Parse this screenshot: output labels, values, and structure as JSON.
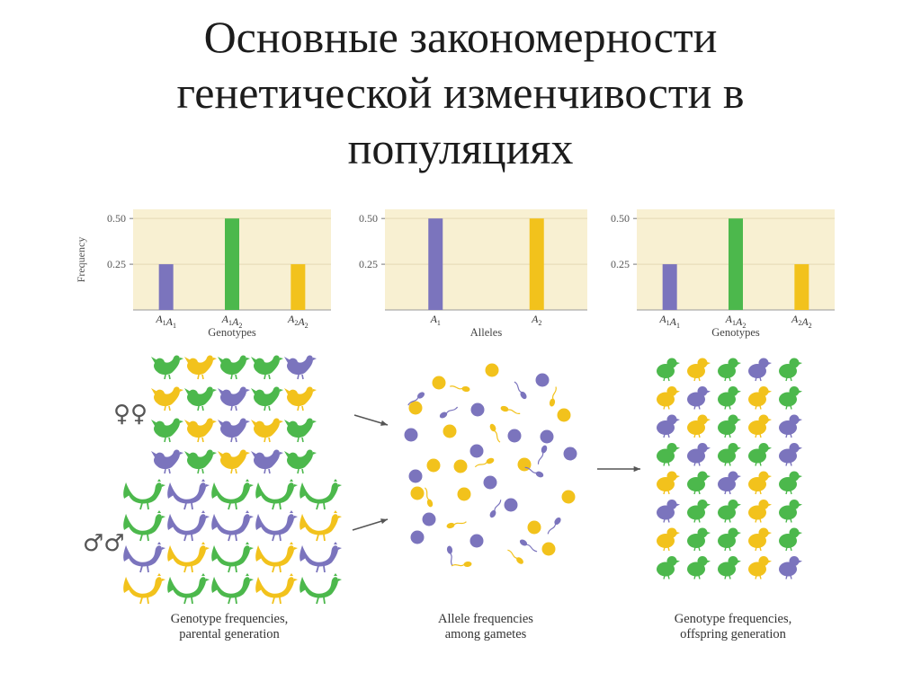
{
  "slide": {
    "title_lines": [
      "Основные закономерности",
      "генетической изменчивости в",
      "популяциях"
    ]
  },
  "colors": {
    "purple": "#7b74bd",
    "green": "#4cb84c",
    "yellow": "#f2c21c",
    "panel_bg": "#f8f0d2"
  },
  "chart_data": [
    {
      "type": "bar",
      "categories": [
        "A1A1",
        "A1A2",
        "A2A2"
      ],
      "values": [
        0.25,
        0.5,
        0.25
      ],
      "bar_colors": [
        "#7b74bd",
        "#4cb84c",
        "#f2c21c"
      ],
      "xlabel": "Genotypes",
      "ylabel": "Frequency",
      "yticks": [
        "0.25",
        "0.50"
      ],
      "ylim": [
        0,
        0.55
      ]
    },
    {
      "type": "bar",
      "categories": [
        "A1",
        "A2"
      ],
      "values": [
        0.5,
        0.5
      ],
      "bar_colors": [
        "#7b74bd",
        "#f2c21c"
      ],
      "xlabel": "Alleles",
      "ylabel": "",
      "yticks": [
        "0.25",
        "0.50"
      ],
      "ylim": [
        0,
        0.55
      ]
    },
    {
      "type": "bar",
      "categories": [
        "A1A1",
        "A1A2",
        "A2A2"
      ],
      "values": [
        0.25,
        0.5,
        0.25
      ],
      "bar_colors": [
        "#7b74bd",
        "#4cb84c",
        "#f2c21c"
      ],
      "xlabel": "Genotypes",
      "ylabel": "",
      "yticks": [
        "0.25",
        "0.50"
      ],
      "ylim": [
        0,
        0.55
      ]
    }
  ],
  "illustration": {
    "female_symbol": "♀♀",
    "male_symbol": "♂♂",
    "captions": [
      [
        "Genotype frequencies,",
        "parental generation"
      ],
      [
        "Allele frequencies",
        "among gametes"
      ],
      [
        "Genotype frequencies,",
        "offspring generation"
      ]
    ],
    "hen_rows": [
      [
        "green",
        "yellow",
        "green",
        "green",
        "purple"
      ],
      [
        "yellow",
        "green",
        "purple",
        "green",
        "yellow"
      ],
      [
        "green",
        "yellow",
        "purple",
        "yellow",
        "green"
      ],
      [
        "purple",
        "green",
        "yellow",
        "purple",
        "green"
      ]
    ],
    "rooster_rows": [
      [
        "green",
        "purple",
        "green",
        "green",
        "green"
      ],
      [
        "green",
        "purple",
        "purple",
        "purple",
        "yellow"
      ],
      [
        "purple",
        "yellow",
        "green",
        "yellow",
        "purple"
      ],
      [
        "yellow",
        "green",
        "green",
        "yellow",
        "green"
      ]
    ],
    "chick_rows": [
      [
        "green",
        "yellow",
        "green",
        "purple",
        "green"
      ],
      [
        "yellow",
        "purple",
        "green",
        "yellow",
        "green"
      ],
      [
        "purple",
        "yellow",
        "green",
        "yellow",
        "purple"
      ],
      [
        "green",
        "purple",
        "green",
        "green",
        "purple"
      ],
      [
        "yellow",
        "green",
        "purple",
        "yellow",
        "green"
      ],
      [
        "purple",
        "green",
        "green",
        "yellow",
        "green"
      ],
      [
        "yellow",
        "green",
        "green",
        "yellow",
        "green"
      ],
      [
        "green",
        "green",
        "green",
        "yellow",
        "purple"
      ]
    ]
  }
}
